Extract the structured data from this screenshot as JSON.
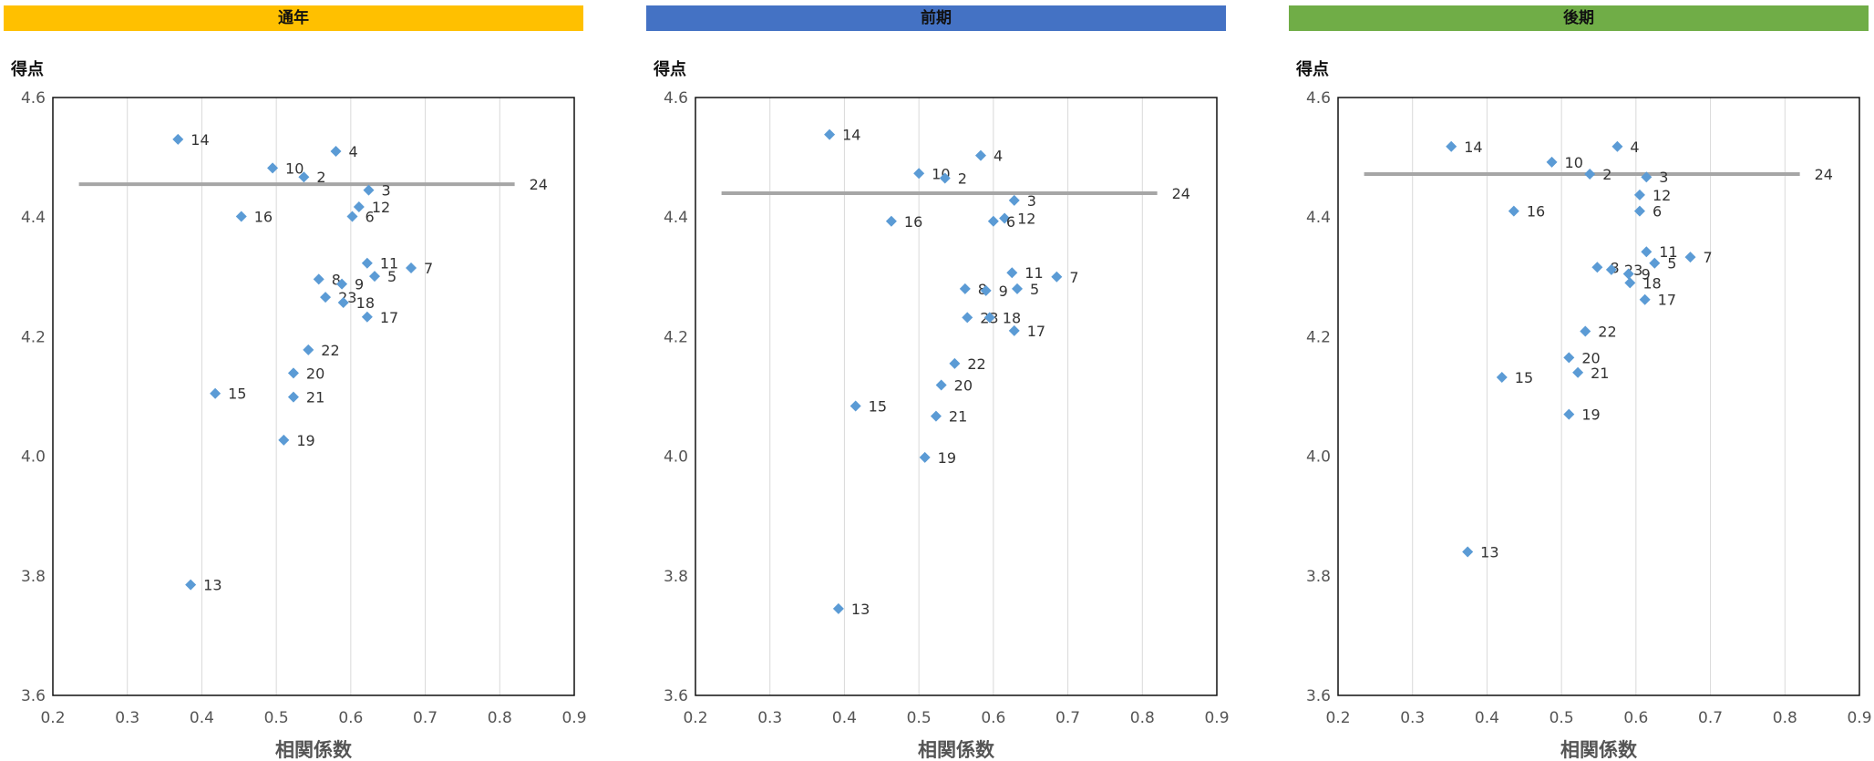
{
  "chart_data": [
    {
      "type": "scatter",
      "title": "通年",
      "title_bg": "#FFC000",
      "ylabel": "得点",
      "xlabel": "相関係数",
      "xlim": [
        0.2,
        0.9
      ],
      "ylim": [
        3.6,
        4.6
      ],
      "xticks": [
        "0.2",
        "0.3",
        "0.4",
        "0.5",
        "0.6",
        "0.7",
        "0.8",
        "0.9"
      ],
      "yticks": [
        "3.6",
        "3.8",
        "4.0",
        "4.2",
        "4.4",
        "4.6"
      ],
      "grid": "vertical",
      "marker_color": "#5B9BD5",
      "line_color": "#A6A6A6",
      "reference_line": {
        "label": "24",
        "y": 4.455,
        "x": [
          0.235,
          0.82
        ]
      },
      "points": [
        {
          "label": "14",
          "x": 0.368,
          "y": 4.53
        },
        {
          "label": "4",
          "x": 0.58,
          "y": 4.51
        },
        {
          "label": "10",
          "x": 0.495,
          "y": 4.482
        },
        {
          "label": "2",
          "x": 0.537,
          "y": 4.467
        },
        {
          "label": "3",
          "x": 0.624,
          "y": 4.445
        },
        {
          "label": "12",
          "x": 0.611,
          "y": 4.417
        },
        {
          "label": "6",
          "x": 0.602,
          "y": 4.401
        },
        {
          "label": "16",
          "x": 0.453,
          "y": 4.401
        },
        {
          "label": "11",
          "x": 0.622,
          "y": 4.323
        },
        {
          "label": "7",
          "x": 0.681,
          "y": 4.315
        },
        {
          "label": "5",
          "x": 0.632,
          "y": 4.301
        },
        {
          "label": "8",
          "x": 0.557,
          "y": 4.296
        },
        {
          "label": "9",
          "x": 0.588,
          "y": 4.288
        },
        {
          "label": "23",
          "x": 0.566,
          "y": 4.266
        },
        {
          "label": "18",
          "x": 0.59,
          "y": 4.257
        },
        {
          "label": "17",
          "x": 0.622,
          "y": 4.233
        },
        {
          "label": "22",
          "x": 0.543,
          "y": 4.178
        },
        {
          "label": "20",
          "x": 0.523,
          "y": 4.139
        },
        {
          "label": "15",
          "x": 0.418,
          "y": 4.105
        },
        {
          "label": "21",
          "x": 0.523,
          "y": 4.099
        },
        {
          "label": "19",
          "x": 0.51,
          "y": 4.027
        },
        {
          "label": "13",
          "x": 0.385,
          "y": 3.785
        }
      ]
    },
    {
      "type": "scatter",
      "title": "前期",
      "title_bg": "#4472C4",
      "ylabel": "得点",
      "xlabel": "相関係数",
      "xlim": [
        0.2,
        0.9
      ],
      "ylim": [
        3.6,
        4.6
      ],
      "xticks": [
        "0.2",
        "0.3",
        "0.4",
        "0.5",
        "0.6",
        "0.7",
        "0.8",
        "0.9"
      ],
      "yticks": [
        "3.6",
        "3.8",
        "4.0",
        "4.2",
        "4.4",
        "4.6"
      ],
      "grid": "vertical",
      "marker_color": "#5B9BD5",
      "line_color": "#A6A6A6",
      "reference_line": {
        "label": "24",
        "y": 4.44,
        "x": [
          0.235,
          0.82
        ]
      },
      "points": [
        {
          "label": "14",
          "x": 0.38,
          "y": 4.538
        },
        {
          "label": "4",
          "x": 0.583,
          "y": 4.503
        },
        {
          "label": "10",
          "x": 0.5,
          "y": 4.473
        },
        {
          "label": "2",
          "x": 0.535,
          "y": 4.465
        },
        {
          "label": "3",
          "x": 0.628,
          "y": 4.428
        },
        {
          "label": "12",
          "x": 0.615,
          "y": 4.398
        },
        {
          "label": "6",
          "x": 0.6,
          "y": 4.393
        },
        {
          "label": "16",
          "x": 0.463,
          "y": 4.393
        },
        {
          "label": "11",
          "x": 0.625,
          "y": 4.307
        },
        {
          "label": "7",
          "x": 0.685,
          "y": 4.3
        },
        {
          "label": "5",
          "x": 0.632,
          "y": 4.28
        },
        {
          "label": "8",
          "x": 0.562,
          "y": 4.28
        },
        {
          "label": "9",
          "x": 0.59,
          "y": 4.277
        },
        {
          "label": "23",
          "x": 0.565,
          "y": 4.232
        },
        {
          "label": "18",
          "x": 0.595,
          "y": 4.232
        },
        {
          "label": "17",
          "x": 0.628,
          "y": 4.21
        },
        {
          "label": "22",
          "x": 0.548,
          "y": 4.155
        },
        {
          "label": "20",
          "x": 0.53,
          "y": 4.119
        },
        {
          "label": "15",
          "x": 0.415,
          "y": 4.084
        },
        {
          "label": "21",
          "x": 0.523,
          "y": 4.067
        },
        {
          "label": "19",
          "x": 0.508,
          "y": 3.998
        },
        {
          "label": "13",
          "x": 0.392,
          "y": 3.745
        }
      ]
    },
    {
      "type": "scatter",
      "title": "後期",
      "title_bg": "#70AD47",
      "ylabel": "得点",
      "xlabel": "相関係数",
      "xlim": [
        0.2,
        0.9
      ],
      "ylim": [
        3.6,
        4.6
      ],
      "xticks": [
        "0.2",
        "0.3",
        "0.4",
        "0.5",
        "0.6",
        "0.7",
        "0.8",
        "0.9"
      ],
      "yticks": [
        "3.6",
        "3.8",
        "4.0",
        "4.2",
        "4.4",
        "4.6"
      ],
      "grid": "vertical",
      "marker_color": "#5B9BD5",
      "line_color": "#A6A6A6",
      "reference_line": {
        "label": "24",
        "y": 4.472,
        "x": [
          0.235,
          0.82
        ]
      },
      "points": [
        {
          "label": "14",
          "x": 0.352,
          "y": 4.518
        },
        {
          "label": "4",
          "x": 0.575,
          "y": 4.518
        },
        {
          "label": "10",
          "x": 0.487,
          "y": 4.492
        },
        {
          "label": "2",
          "x": 0.538,
          "y": 4.472
        },
        {
          "label": "3",
          "x": 0.614,
          "y": 4.467
        },
        {
          "label": "12",
          "x": 0.605,
          "y": 4.437
        },
        {
          "label": "6",
          "x": 0.605,
          "y": 4.41
        },
        {
          "label": "16",
          "x": 0.436,
          "y": 4.41
        },
        {
          "label": "11",
          "x": 0.614,
          "y": 4.342
        },
        {
          "label": "7",
          "x": 0.673,
          "y": 4.333
        },
        {
          "label": "5",
          "x": 0.625,
          "y": 4.323
        },
        {
          "label": "8",
          "x": 0.548,
          "y": 4.316
        },
        {
          "label": "23",
          "x": 0.567,
          "y": 4.312
        },
        {
          "label": "9",
          "x": 0.59,
          "y": 4.305
        },
        {
          "label": "18",
          "x": 0.592,
          "y": 4.29
        },
        {
          "label": "17",
          "x": 0.612,
          "y": 4.262
        },
        {
          "label": "22",
          "x": 0.532,
          "y": 4.209
        },
        {
          "label": "20",
          "x": 0.51,
          "y": 4.165
        },
        {
          "label": "15",
          "x": 0.42,
          "y": 4.132
        },
        {
          "label": "21",
          "x": 0.522,
          "y": 4.14
        },
        {
          "label": "19",
          "x": 0.51,
          "y": 4.07
        },
        {
          "label": "13",
          "x": 0.374,
          "y": 3.84
        }
      ]
    }
  ]
}
